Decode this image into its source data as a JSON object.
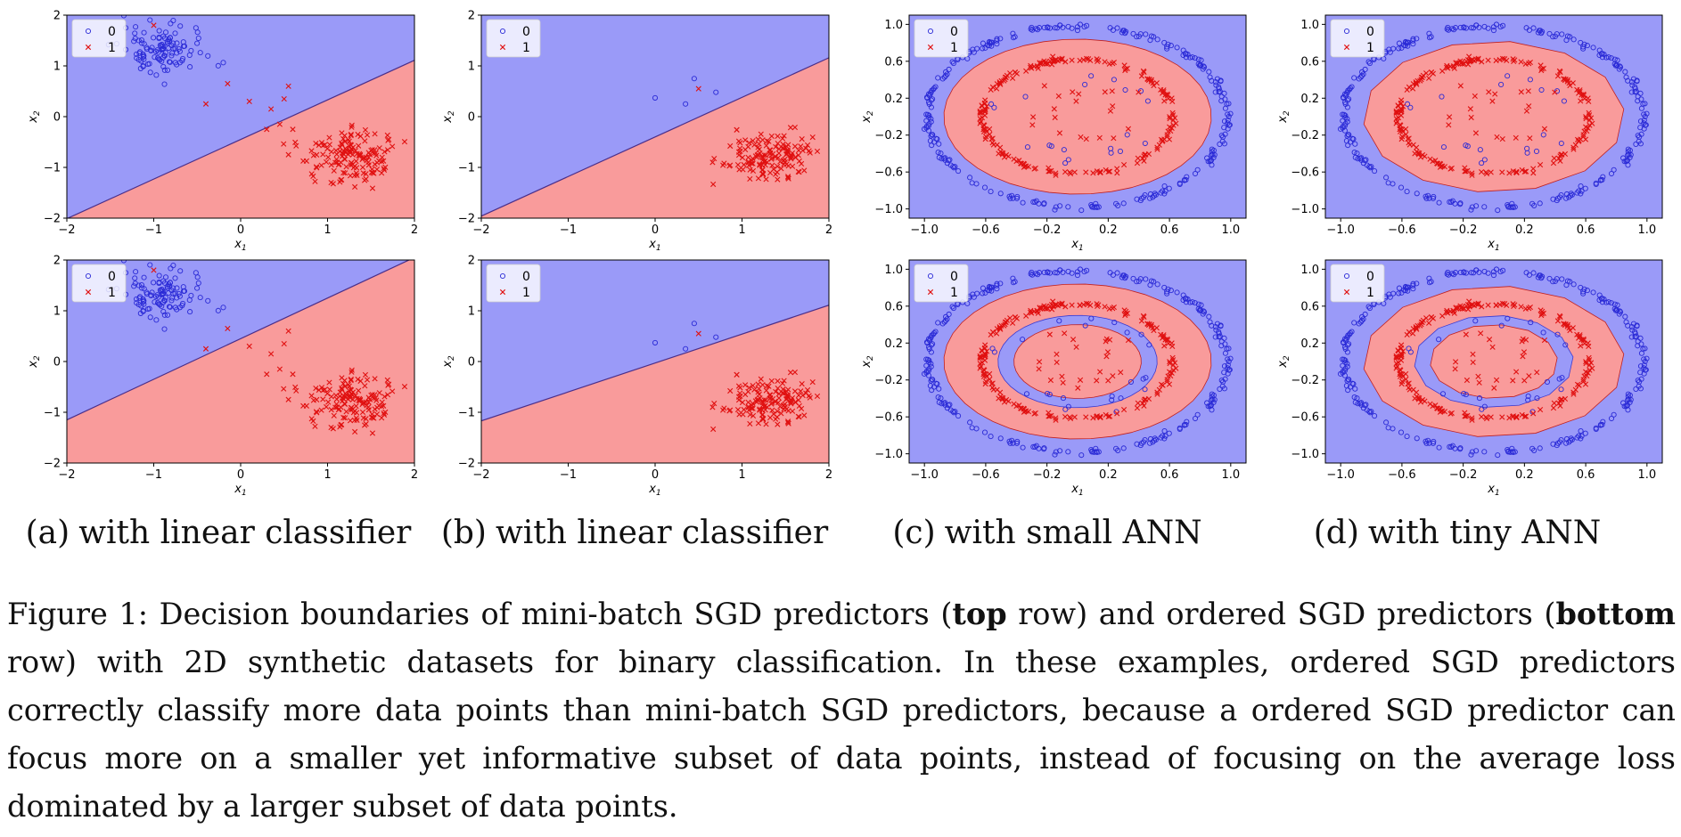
{
  "figure": {
    "subcaptions": [
      {
        "label": "(a)",
        "text": "with linear classifier"
      },
      {
        "label": "(b)",
        "text": "with linear classifier"
      },
      {
        "label": "(c)",
        "text": "with small ANN"
      },
      {
        "label": "(d)",
        "text": "with tiny ANN"
      }
    ],
    "caption": {
      "prefix": "Figure 1:",
      "part1": "Decision boundaries of mini-batch SGD predictors (",
      "bold1": "top",
      "part2": " row) and ordered SGD predictors (",
      "bold2": "bottom",
      "part3": " row) with 2D synthetic datasets for binary classification. In these examples, ordered SGD predictors correctly classify more data points than mini-batch SGD predictors, because a ordered SGD predictor can focus more on a smaller yet informative subset of data points, instead of focusing on the average loss dominated by a larger subset of data points."
    }
  },
  "colors": {
    "class0_region": "#9a9af8",
    "class1_region": "#f99b9b",
    "class0_marker": "#2a2ad6",
    "class1_marker": "#e01010"
  },
  "chart_data": [
    {
      "id": "a-top",
      "type": "scatter",
      "title": "",
      "xlabel": "x1",
      "ylabel": "x2",
      "xlim": [
        -2,
        2
      ],
      "ylim": [
        -2,
        2
      ],
      "xticks": [
        "−2",
        "−1",
        "0",
        "1",
        "2"
      ],
      "yticks": [
        "−2",
        "−1",
        "0",
        "1",
        "2"
      ],
      "legend": [
        "0",
        "1"
      ],
      "legend_position": "top-left",
      "dataset": "linear",
      "boundary": {
        "kind": "line",
        "slope": 0.78,
        "intercept": -0.45
      },
      "series": [
        {
          "name": "0",
          "marker": "circle",
          "cluster_center": [
            -0.9,
            1.3
          ]
        },
        {
          "name": "1",
          "marker": "x",
          "cluster_center": [
            1.25,
            -0.8
          ],
          "outliers": [
            [
              -1.0,
              1.8
            ],
            [
              -0.4,
              0.25
            ],
            [
              -0.15,
              0.65
            ],
            [
              0.1,
              0.3
            ],
            [
              0.3,
              -0.25
            ],
            [
              0.35,
              0.15
            ],
            [
              0.45,
              -0.15
            ],
            [
              0.5,
              0.35
            ],
            [
              0.55,
              0.6
            ],
            [
              0.6,
              -0.25
            ],
            [
              0.55,
              -0.75
            ]
          ]
        }
      ]
    },
    {
      "id": "b-top",
      "type": "scatter",
      "title": "",
      "xlabel": "x1",
      "ylabel": "x2",
      "xlim": [
        -2,
        2
      ],
      "ylim": [
        -2,
        2
      ],
      "xticks": [
        "−2",
        "−1",
        "0",
        "1",
        "2"
      ],
      "yticks": [
        "−2",
        "−1",
        "0",
        "1",
        "2"
      ],
      "legend": [
        "0",
        "1"
      ],
      "legend_position": "top-left",
      "dataset": "linear",
      "boundary": {
        "kind": "line",
        "slope": 0.78,
        "intercept": -0.4
      },
      "series": [
        {
          "name": "0",
          "marker": "circle",
          "points": [
            [
              0.0,
              0.37
            ],
            [
              0.35,
              0.25
            ],
            [
              0.45,
              0.75
            ],
            [
              0.7,
              0.48
            ]
          ]
        },
        {
          "name": "1",
          "marker": "x",
          "cluster_center": [
            1.3,
            -0.75
          ],
          "outliers": [
            [
              0.5,
              0.55
            ]
          ]
        }
      ]
    },
    {
      "id": "c-top",
      "type": "scatter",
      "title": "",
      "xlabel": "x1",
      "ylabel": "x2",
      "xlim": [
        -1.1,
        1.1
      ],
      "ylim": [
        -1.1,
        1.1
      ],
      "xticks": [
        "−1.0",
        "−0.6",
        "−0.2",
        "0.2",
        "0.6",
        "1.0"
      ],
      "yticks": [
        "−1.0",
        "−0.6",
        "−0.2",
        "0.2",
        "0.6",
        "1.0"
      ],
      "legend": [
        "0",
        "1"
      ],
      "legend_position": "top-left",
      "dataset": "circles",
      "boundary": {
        "kind": "rings",
        "regions": [
          [
            "0",
            1.1
          ],
          [
            "1",
            0.84
          ],
          [
            "0",
            0.0
          ]
        ]
      },
      "series": [
        {
          "name": "0",
          "marker": "circle",
          "ring_radius": 0.98
        },
        {
          "name": "1",
          "marker": "x",
          "ring_radius": 0.62
        }
      ]
    },
    {
      "id": "d-top",
      "type": "scatter",
      "title": "",
      "xlabel": "x1",
      "ylabel": "x2",
      "xlim": [
        -1.1,
        1.1
      ],
      "ylim": [
        -1.1,
        1.1
      ],
      "xticks": [
        "−1.0",
        "−0.6",
        "−0.2",
        "0.2",
        "0.6",
        "1.0"
      ],
      "yticks": [
        "−1.0",
        "−0.6",
        "−0.2",
        "0.2",
        "0.6",
        "1.0"
      ],
      "legend": [
        "0",
        "1"
      ],
      "legend_position": "top-left",
      "dataset": "circles",
      "boundary": {
        "kind": "rings",
        "regions": [
          [
            "0",
            1.1
          ],
          [
            "1",
            0.82
          ],
          [
            "0",
            0.0
          ]
        ]
      },
      "series": [
        {
          "name": "0",
          "marker": "circle",
          "ring_radius": 0.98
        },
        {
          "name": "1",
          "marker": "x",
          "ring_radius": 0.62
        }
      ]
    },
    {
      "id": "a-bottom",
      "type": "scatter",
      "title": "",
      "xlabel": "x1",
      "ylabel": "x2",
      "xlim": [
        -2,
        2
      ],
      "ylim": [
        -2,
        2
      ],
      "xticks": [
        "−2",
        "−1",
        "0",
        "1",
        "2"
      ],
      "yticks": [
        "−2",
        "−1",
        "0",
        "1",
        "2"
      ],
      "legend": [
        "0",
        "1"
      ],
      "legend_position": "top-left",
      "dataset": "linear",
      "boundary": {
        "kind": "line",
        "slope": 0.8,
        "intercept": 0.45
      },
      "series": [
        {
          "name": "0",
          "marker": "circle",
          "cluster_center": [
            -0.9,
            1.3
          ]
        },
        {
          "name": "1",
          "marker": "x",
          "cluster_center": [
            1.25,
            -0.8
          ],
          "outliers": [
            [
              -1.0,
              1.8
            ],
            [
              -0.4,
              0.25
            ],
            [
              -0.15,
              0.65
            ],
            [
              0.1,
              0.3
            ],
            [
              0.3,
              -0.25
            ],
            [
              0.35,
              0.15
            ],
            [
              0.45,
              -0.15
            ],
            [
              0.5,
              0.35
            ],
            [
              0.55,
              0.6
            ],
            [
              0.6,
              -0.25
            ],
            [
              0.55,
              -0.75
            ]
          ]
        }
      ]
    },
    {
      "id": "b-bottom",
      "type": "scatter",
      "title": "",
      "xlabel": "x1",
      "ylabel": "x2",
      "xlim": [
        -2,
        2
      ],
      "ylim": [
        -2,
        2
      ],
      "xticks": [
        "−2",
        "−1",
        "0",
        "1",
        "2"
      ],
      "yticks": [
        "−2",
        "−1",
        "0",
        "1",
        "2"
      ],
      "legend": [
        "0",
        "1"
      ],
      "legend_position": "top-left",
      "dataset": "linear",
      "boundary": {
        "kind": "line",
        "slope": 0.57,
        "intercept": -0.03
      },
      "series": [
        {
          "name": "0",
          "marker": "circle",
          "points": [
            [
              0.0,
              0.37
            ],
            [
              0.35,
              0.25
            ],
            [
              0.45,
              0.75
            ],
            [
              0.7,
              0.48
            ]
          ]
        },
        {
          "name": "1",
          "marker": "x",
          "cluster_center": [
            1.3,
            -0.75
          ],
          "outliers": [
            [
              0.5,
              0.55
            ]
          ]
        }
      ]
    },
    {
      "id": "c-bottom",
      "type": "scatter",
      "title": "",
      "xlabel": "x1",
      "ylabel": "x2",
      "xlim": [
        -1.1,
        1.1
      ],
      "ylim": [
        -1.1,
        1.1
      ],
      "xticks": [
        "−1.0",
        "−0.6",
        "−0.2",
        "0.2",
        "0.6",
        "1.0"
      ],
      "yticks": [
        "−1.0",
        "−0.6",
        "−0.2",
        "0.2",
        "0.6",
        "1.0"
      ],
      "legend": [
        "0",
        "1"
      ],
      "legend_position": "top-left",
      "dataset": "circles",
      "boundary": {
        "kind": "rings",
        "regions": [
          [
            "0",
            1.1
          ],
          [
            "1",
            0.84
          ],
          [
            "0",
            0.5
          ],
          [
            "1",
            0.4
          ]
        ]
      },
      "series": [
        {
          "name": "0",
          "marker": "circle",
          "ring_radius": 0.98,
          "inner_ring_radius": 0.45
        },
        {
          "name": "1",
          "marker": "x",
          "ring_radius": 0.62,
          "inner_ring_radius": 0.25
        }
      ]
    },
    {
      "id": "d-bottom",
      "type": "scatter",
      "title": "",
      "xlabel": "x1",
      "ylabel": "x2",
      "xlim": [
        -1.1,
        1.1
      ],
      "ylim": [
        -1.1,
        1.1
      ],
      "xticks": [
        "−1.0",
        "−0.6",
        "−0.2",
        "0.2",
        "0.6",
        "1.0"
      ],
      "yticks": [
        "−1.0",
        "−0.6",
        "−0.2",
        "0.2",
        "0.6",
        "1.0"
      ],
      "legend": [
        "0",
        "1"
      ],
      "legend_position": "top-left",
      "dataset": "circles",
      "boundary": {
        "kind": "rings",
        "regions": [
          [
            "0",
            1.1
          ],
          [
            "1",
            0.82
          ],
          [
            "0",
            0.5
          ],
          [
            "1",
            0.4
          ]
        ]
      },
      "series": [
        {
          "name": "0",
          "marker": "circle",
          "ring_radius": 0.98,
          "inner_ring_radius": 0.45
        },
        {
          "name": "1",
          "marker": "x",
          "ring_radius": 0.62,
          "inner_ring_radius": 0.25
        }
      ]
    }
  ]
}
